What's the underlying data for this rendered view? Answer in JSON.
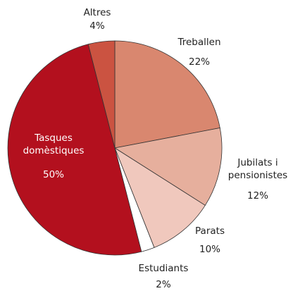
{
  "chart_data": {
    "type": "pie",
    "categories": [
      "Treballen",
      "Jubilats i pensionistes",
      "Parats",
      "Estudiants",
      "Tasques domèstiques",
      "Altres"
    ],
    "values": [
      22,
      12,
      10,
      2,
      50,
      4
    ],
    "value_labels": [
      "22%",
      "12%",
      "10%",
      "2%",
      "50%",
      "4%"
    ],
    "colors": [
      "#d9876f",
      "#e6af9d",
      "#f0c8bd",
      "#ffffff",
      "#b3101e",
      "#cb5341"
    ]
  }
}
